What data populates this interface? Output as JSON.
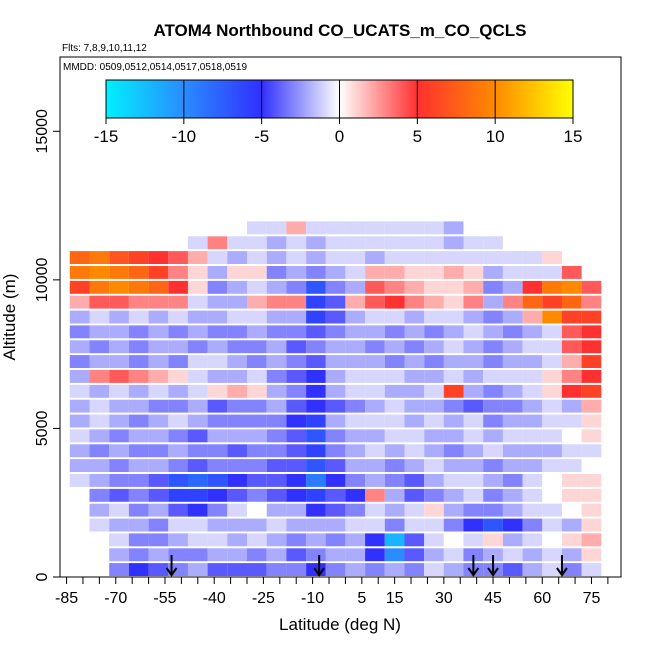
{
  "chart_data": {
    "type": "heatmap",
    "title": "ATOM4 Northbound CO_UCATS_m_CO_QCLS",
    "subtitle_flights": "Flts: 7,8,9,10,11,12",
    "subtitle_dates": "MMDD: 0509,0512,0514,0517,0518,0519",
    "xlabel": "Latitude (deg N)",
    "ylabel": "Altitude (m)",
    "xlim": [
      -87,
      84
    ],
    "ylim": [
      0,
      17500
    ],
    "x_ticks": [
      -85,
      -70,
      -55,
      -40,
      -25,
      -10,
      5,
      15,
      30,
      45,
      60,
      75
    ],
    "x_tick_labels": [
      "-85",
      "-70",
      "-55",
      "-40",
      "-25",
      "-10",
      "5",
      "15",
      "30",
      "45",
      "60",
      "75"
    ],
    "y_ticks": [
      0,
      5000,
      10000,
      15000
    ],
    "y_tick_labels": [
      "0",
      "5000",
      "10000",
      "15000"
    ],
    "colorbar": {
      "range": [
        -15,
        15
      ],
      "ticks": [
        -15,
        -10,
        -5,
        0,
        5,
        10,
        15
      ],
      "tick_labels": [
        "-15",
        "-10",
        "-5",
        "0",
        "5",
        "10",
        "15"
      ],
      "colors": [
        "#00f0ff",
        "#2a8cff",
        "#3030ff",
        "#ffffff",
        "#ff3030",
        "#ff8a00",
        "#ffff00"
      ]
    },
    "arrows_latitudes": [
      -53,
      -8,
      39,
      45,
      66
    ],
    "columns_latitude_ranges": [
      [
        -84,
        -78
      ],
      [
        -78,
        -72
      ],
      [
        -72,
        -66
      ],
      [
        -66,
        -60
      ],
      [
        -60,
        -54
      ],
      [
        -54,
        -48
      ],
      [
        -48,
        -42
      ],
      [
        -42,
        -36
      ],
      [
        -36,
        -30
      ],
      [
        -30,
        -24
      ],
      [
        -24,
        -18
      ],
      [
        -18,
        -12
      ],
      [
        -12,
        -6
      ],
      [
        -6,
        0
      ],
      [
        0,
        6
      ],
      [
        6,
        12
      ],
      [
        12,
        18
      ],
      [
        18,
        24
      ],
      [
        24,
        30
      ],
      [
        30,
        36
      ],
      [
        36,
        42
      ],
      [
        42,
        48
      ],
      [
        48,
        54
      ],
      [
        54,
        60
      ],
      [
        60,
        66
      ],
      [
        66,
        72
      ],
      [
        72,
        78
      ]
    ],
    "rows_altitude_ranges_m": [
      [
        0,
        500
      ],
      [
        500,
        1000
      ],
      [
        1000,
        1500
      ],
      [
        1500,
        2000
      ],
      [
        2000,
        2500
      ],
      [
        2500,
        3000
      ],
      [
        3000,
        3500
      ],
      [
        3500,
        4000
      ],
      [
        4000,
        4500
      ],
      [
        4500,
        5000
      ],
      [
        5000,
        5500
      ],
      [
        5500,
        6000
      ],
      [
        6000,
        6500
      ],
      [
        6500,
        7000
      ],
      [
        7000,
        7500
      ],
      [
        7500,
        8000
      ],
      [
        8000,
        8500
      ],
      [
        8500,
        9000
      ],
      [
        9000,
        9500
      ],
      [
        9500,
        10000
      ],
      [
        10000,
        10500
      ],
      [
        10500,
        11000
      ],
      [
        11000,
        11500
      ],
      [
        11500,
        12000
      ]
    ],
    "values": [
      [
        null,
        null,
        -3,
        -5,
        -4,
        -3,
        -2,
        -4,
        -4,
        -4,
        -3,
        -3,
        -5,
        -3,
        -2,
        -3,
        -2,
        -3,
        -1,
        -2,
        -3,
        -3,
        -4,
        -2,
        -1,
        -3,
        -1
      ],
      [
        null,
        null,
        -2,
        -3,
        -2,
        -3,
        -3,
        -2,
        -2,
        -3,
        -2,
        -4,
        -3,
        -2,
        -2,
        -5,
        -10,
        -4,
        -2,
        -1,
        -3,
        -2,
        -1,
        -2,
        -1,
        -2,
        1
      ],
      [
        null,
        null,
        -1,
        -3,
        -3,
        -2,
        -1,
        -1,
        -2,
        -1,
        -2,
        -3,
        -2,
        -3,
        -2,
        -5,
        -12,
        -4,
        -1,
        0,
        -1,
        1,
        -2,
        -1,
        0,
        1,
        2
      ],
      [
        null,
        -1,
        -2,
        -2,
        -3,
        -1,
        -1,
        -2,
        -2,
        -2,
        -1,
        -2,
        -2,
        -2,
        -1,
        -1,
        -3,
        -1,
        -1,
        -3,
        -5,
        -7,
        -5,
        -3,
        -1,
        -2,
        1
      ],
      [
        null,
        -2,
        -1,
        -3,
        -2,
        -4,
        -5,
        -3,
        -1,
        0,
        -2,
        -2,
        -5,
        -4,
        -3,
        -1,
        -2,
        -1,
        1,
        -2,
        -3,
        -3,
        -2,
        -1,
        -1,
        0,
        1
      ],
      [
        null,
        -3,
        -4,
        -3,
        -4,
        -6,
        -6,
        -5,
        -4,
        -3,
        -4,
        -5,
        -6,
        -4,
        -5,
        3,
        -2,
        -4,
        -3,
        -2,
        -1,
        -3,
        -2,
        -1,
        0,
        1,
        1
      ],
      [
        -1,
        -2,
        -3,
        -3,
        -4,
        -7,
        -8,
        -7,
        -5,
        -4,
        -4,
        -5,
        -9,
        -5,
        -3,
        -2,
        -3,
        -4,
        -2,
        -1,
        -1,
        -2,
        -3,
        -1,
        0,
        1,
        1
      ],
      [
        -2,
        -2,
        -3,
        -2,
        -2,
        -3,
        -4,
        -3,
        -3,
        -3,
        -4,
        -4,
        -7,
        -4,
        -2,
        -2,
        -3,
        -2,
        -1,
        -2,
        -2,
        -3,
        -2,
        -2,
        -1,
        -1,
        0
      ],
      [
        -2,
        -3,
        -2,
        -3,
        -3,
        -2,
        -3,
        -3,
        -4,
        -3,
        -3,
        -4,
        -6,
        -3,
        -2,
        -1,
        -2,
        -1,
        -2,
        -3,
        -2,
        -1,
        -2,
        -2,
        -2,
        -1,
        -1
      ],
      [
        -1,
        -2,
        -3,
        -2,
        -2,
        -3,
        -4,
        -2,
        -2,
        -2,
        -3,
        -4,
        -7,
        -3,
        -2,
        -2,
        -1,
        -1,
        -2,
        -2,
        -1,
        -2,
        -1,
        -1,
        -1,
        0,
        1
      ],
      [
        -2,
        -1,
        -2,
        -3,
        -2,
        -1,
        -2,
        -3,
        -3,
        -3,
        -3,
        -5,
        -6,
        -2,
        -1,
        -1,
        -1,
        -2,
        -1,
        -2,
        -1,
        -3,
        -2,
        -2,
        -1,
        -1,
        1
      ],
      [
        -2,
        -1,
        -2,
        -2,
        -3,
        -3,
        -2,
        -4,
        -3,
        -3,
        -2,
        -4,
        -5,
        -4,
        -3,
        -2,
        -1,
        -2,
        -2,
        -3,
        -4,
        -3,
        -3,
        -2,
        -1,
        -2,
        2
      ],
      [
        -1,
        -2,
        -1,
        -2,
        -1,
        -2,
        -1,
        1,
        2,
        1,
        -2,
        -3,
        -5,
        -2,
        -1,
        -1,
        -2,
        -2,
        -1,
        6,
        -2,
        -3,
        -2,
        -1,
        1,
        5,
        6
      ],
      [
        -2,
        3,
        4,
        3,
        2,
        1,
        -1,
        -2,
        -2,
        -1,
        -3,
        -4,
        -5,
        -2,
        -1,
        -1,
        -1,
        -2,
        -2,
        -1,
        -2,
        -1,
        -1,
        -1,
        1,
        3,
        5
      ],
      [
        -3,
        -2,
        -2,
        -3,
        -2,
        -3,
        -1,
        -1,
        -2,
        -3,
        -2,
        -3,
        -4,
        -2,
        -2,
        -2,
        -3,
        -2,
        -3,
        -2,
        -2,
        -3,
        -2,
        -2,
        -1,
        2,
        6
      ],
      [
        -2,
        -3,
        -2,
        -3,
        -2,
        -2,
        -3,
        -2,
        -3,
        -3,
        -2,
        -4,
        -3,
        -2,
        -2,
        -3,
        -2,
        -3,
        -2,
        -1,
        -2,
        -3,
        -2,
        -1,
        -1,
        4,
        5
      ],
      [
        -3,
        -2,
        -2,
        -3,
        -2,
        -3,
        -2,
        -3,
        -3,
        -2,
        -3,
        -3,
        -4,
        -3,
        -2,
        -2,
        -3,
        -2,
        -3,
        -2,
        -1,
        -2,
        -3,
        -2,
        -1,
        4,
        5
      ],
      [
        -2,
        -1,
        -2,
        -1,
        -2,
        -1,
        -2,
        -2,
        -1,
        -1,
        -2,
        -2,
        -6,
        -4,
        -2,
        -1,
        -1,
        -2,
        -1,
        -1,
        -2,
        -3,
        -2,
        2,
        10,
        6,
        6
      ],
      [
        2,
        4,
        4,
        3,
        3,
        3,
        -1,
        -2,
        -2,
        2,
        3,
        3,
        -6,
        -4,
        2,
        4,
        5,
        3,
        2,
        1,
        3,
        -2,
        3,
        8,
        6,
        8,
        3
      ],
      [
        6,
        9,
        10,
        9,
        8,
        5,
        1,
        -3,
        -2,
        -1,
        -2,
        -3,
        -7,
        -3,
        -2,
        4,
        3,
        2,
        1,
        1,
        2,
        -3,
        -2,
        5,
        9,
        10,
        4
      ],
      [
        9,
        10,
        9,
        8,
        6,
        3,
        1,
        -2,
        1,
        1,
        -3,
        -2,
        -3,
        -2,
        -1,
        2,
        2,
        1,
        1,
        2,
        1,
        -2,
        -1,
        -1,
        -1,
        4,
        null
      ],
      [
        8,
        9,
        7,
        6,
        5,
        4,
        2,
        -1,
        -2,
        -1,
        -2,
        -1,
        -2,
        -1,
        -1,
        -2,
        -1,
        -1,
        -1,
        -1,
        -1,
        -1,
        -1,
        -1,
        1,
        null,
        null
      ],
      [
        null,
        null,
        null,
        null,
        null,
        null,
        -1,
        3,
        -1,
        -1,
        -2,
        -1,
        -2,
        -1,
        -1,
        -1,
        -1,
        -1,
        -1,
        -2,
        -1,
        -1,
        null,
        null,
        null,
        null,
        null
      ],
      [
        null,
        null,
        null,
        null,
        null,
        null,
        null,
        null,
        null,
        -1,
        -1,
        2,
        -1,
        -1,
        -1,
        -1,
        -1,
        -1,
        -1,
        -2,
        null,
        null,
        null,
        null,
        null,
        null,
        null
      ]
    ]
  }
}
